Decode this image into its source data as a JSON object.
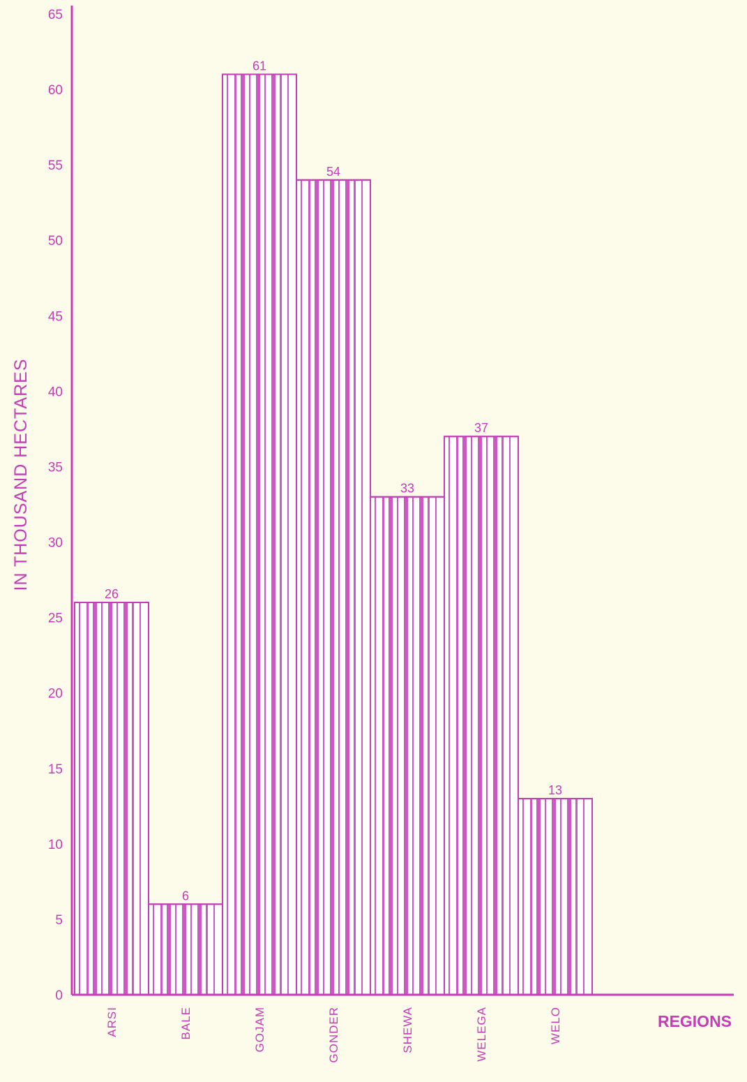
{
  "colors": {
    "background": "#fdfbea",
    "accent": "#c63bb8",
    "bar_fill": "#ffffff"
  },
  "chart_data": {
    "type": "bar",
    "categories": [
      "ARSI",
      "BALE",
      "GOJAM",
      "GONDER",
      "SHEWA",
      "WELEGA",
      "WELO"
    ],
    "values": [
      26,
      6,
      61,
      54,
      33,
      37,
      13
    ],
    "value_labels": [
      "26",
      "6",
      "61",
      "54",
      "33",
      "37",
      "13"
    ],
    "title": "",
    "xlabel": "REGIONS",
    "ylabel": "IN THOUSAND HECTARES",
    "ylim": [
      0,
      65
    ],
    "yticks": [
      0,
      5,
      10,
      15,
      20,
      25,
      30,
      35,
      40,
      45,
      50,
      55,
      60,
      65
    ],
    "grid": false,
    "legend": "none"
  }
}
